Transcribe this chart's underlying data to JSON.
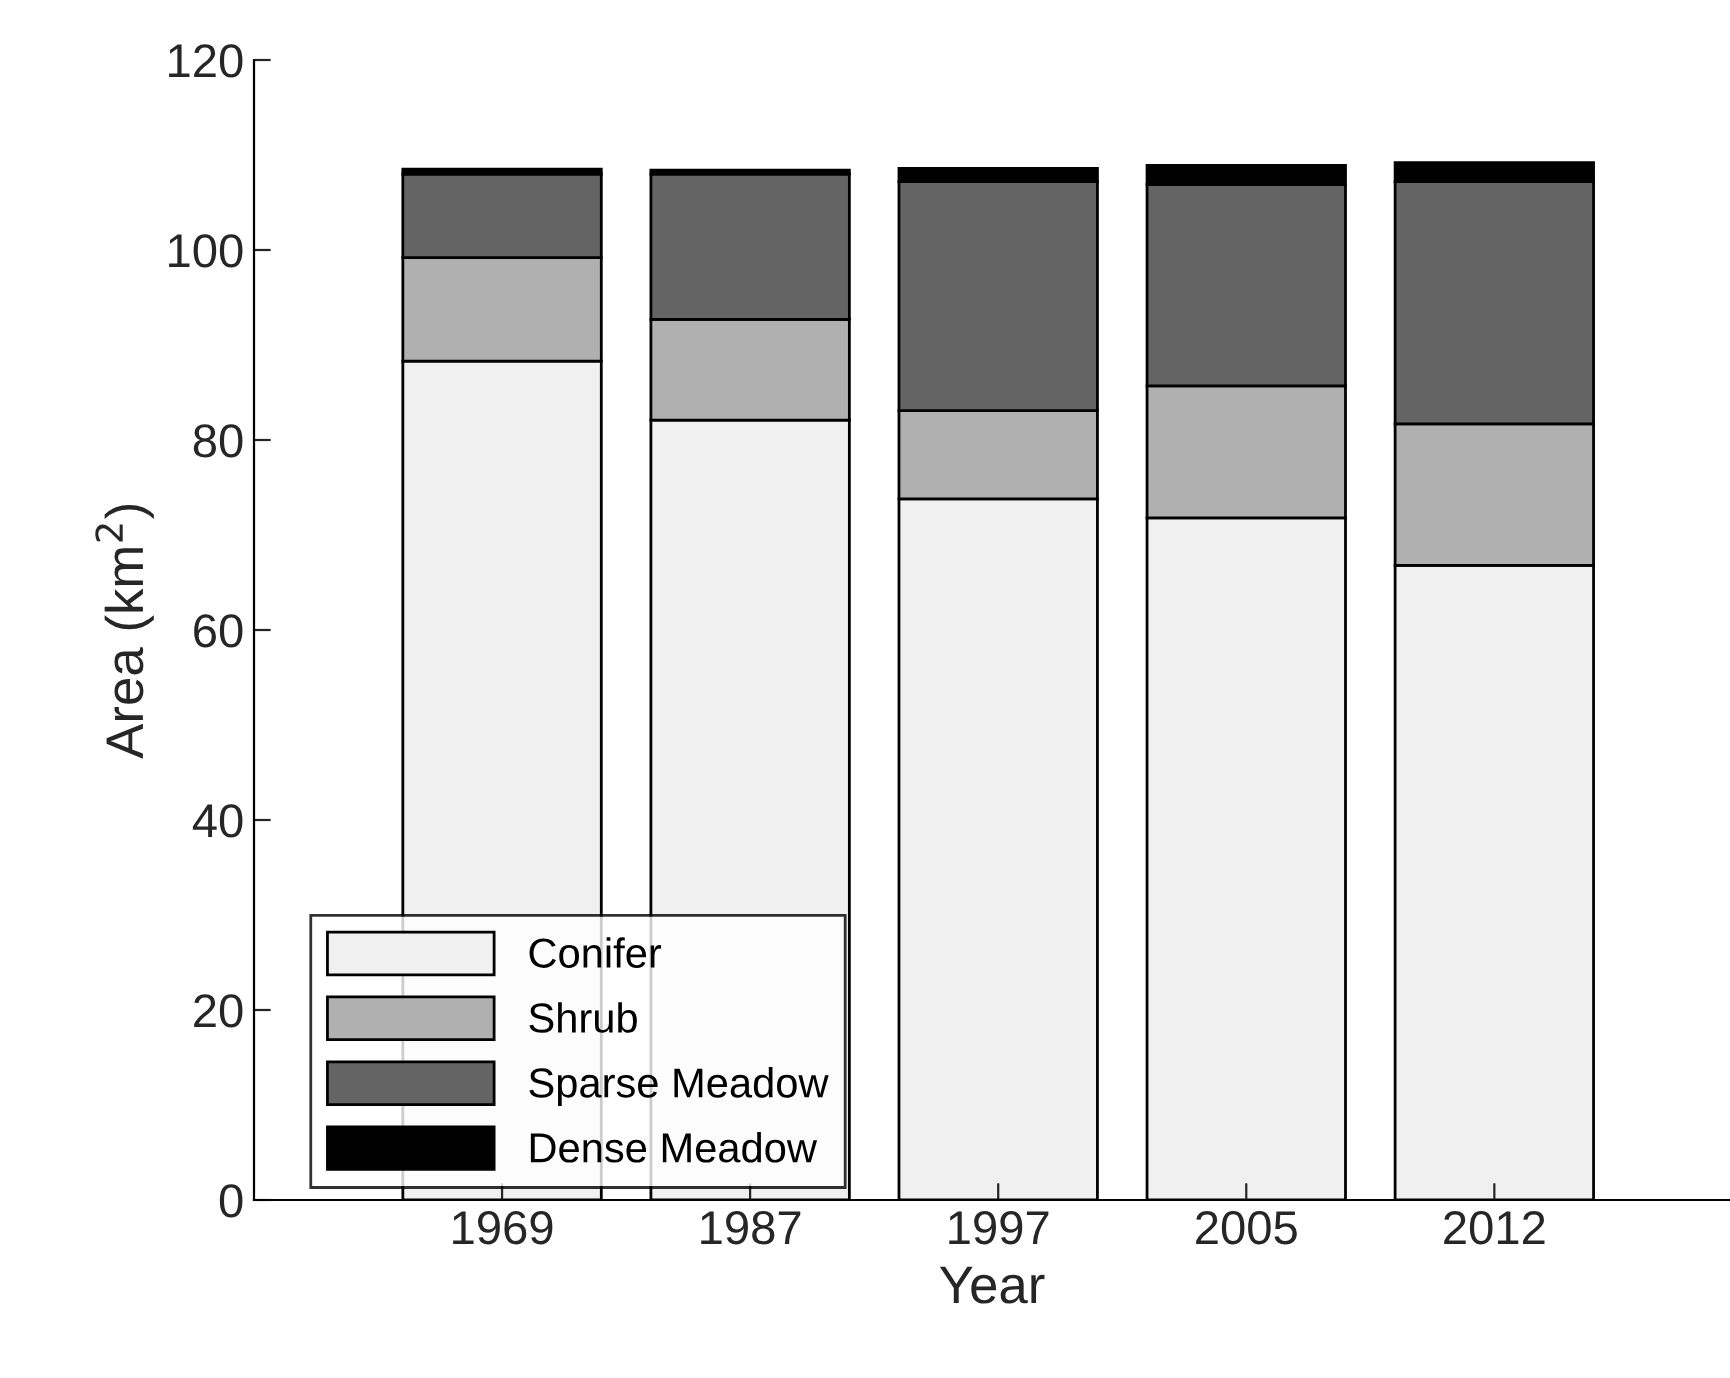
{
  "chart_data": {
    "type": "bar",
    "stacked": true,
    "xlabel": "Year",
    "ylabel": "Area (km$^{2}$)",
    "categories": [
      "1969",
      "1987",
      "1997",
      "2005",
      "2012"
    ],
    "series": [
      {
        "name": "Conifer",
        "color": "#f0f0f0",
        "values": [
          88.3,
          82.1,
          73.8,
          71.8,
          66.8
        ]
      },
      {
        "name": "Shrub",
        "color": "#b0b0b0",
        "values": [
          10.9,
          10.6,
          9.3,
          13.9,
          14.9
        ]
      },
      {
        "name": "Sparse Meadow",
        "color": "#646464",
        "values": [
          8.8,
          15.3,
          24.1,
          21.2,
          25.5
        ]
      },
      {
        "name": "Dense Meadow",
        "color": "#000000",
        "values": [
          0.5,
          0.4,
          1.4,
          2.0,
          2.0
        ]
      }
    ],
    "ylim": [
      0,
      120
    ],
    "yticks": [
      0,
      20,
      40,
      60,
      80,
      100,
      120
    ],
    "grid": false,
    "legend": "bottom left"
  }
}
